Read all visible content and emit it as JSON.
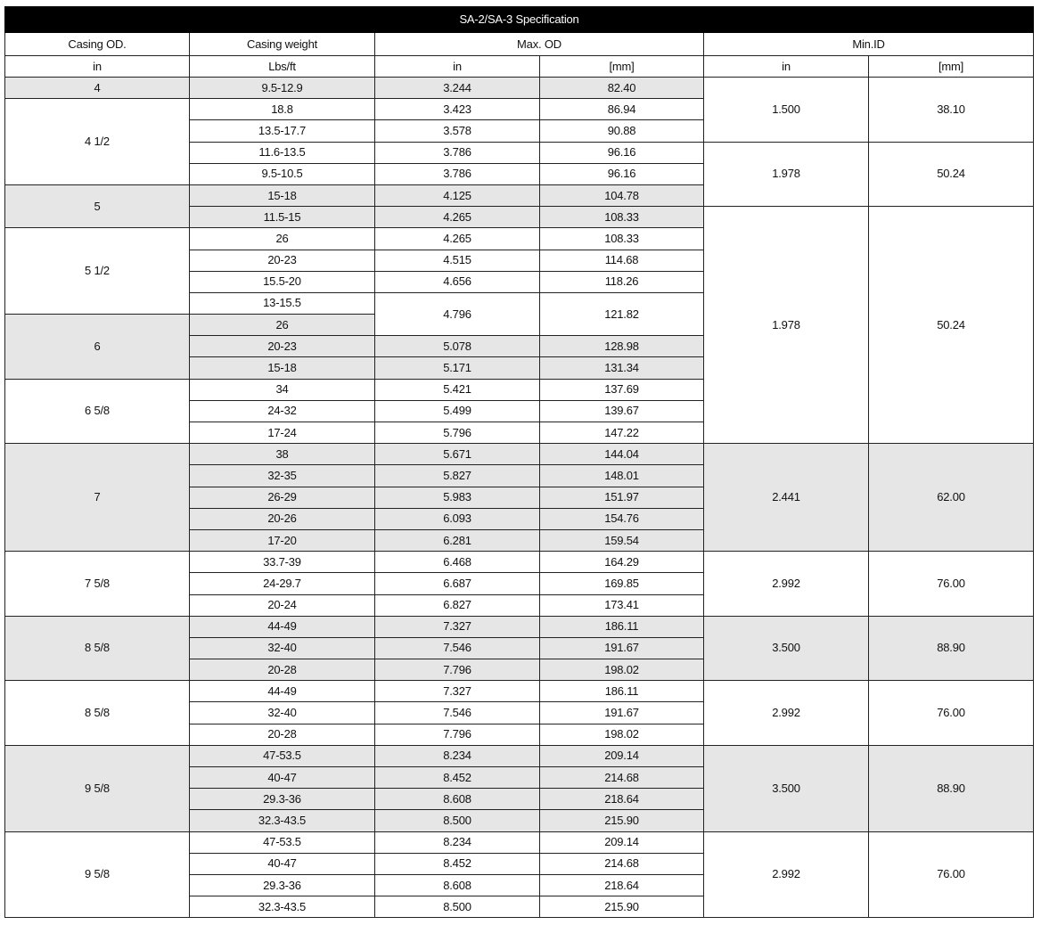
{
  "title": "SA-2/SA-3 Specification",
  "headers": {
    "casing_od": "Casing OD.",
    "casing_weight": "Casing weight",
    "max_od": "Max. OD",
    "min_id": "Min.ID"
  },
  "units": [
    "in",
    "Lbs/ft",
    "in",
    "[mm]",
    "in",
    "[mm]"
  ],
  "shade_color": "#e6e6e6",
  "rows": [
    [
      {
        "t": "4",
        "g": true
      },
      {
        "t": "9.5-12.9",
        "g": true
      },
      {
        "t": "3.244",
        "g": true
      },
      {
        "t": "82.40",
        "g": true
      },
      {
        "t": "1.500",
        "rs": 3
      },
      {
        "t": "38.10",
        "rs": 3
      }
    ],
    [
      {
        "t": "4 1/2",
        "rs": 4
      },
      {
        "t": "18.8"
      },
      {
        "t": "3.423"
      },
      {
        "t": "86.94"
      }
    ],
    [
      {
        "t": "13.5-17.7"
      },
      {
        "t": "3.578"
      },
      {
        "t": "90.88"
      }
    ],
    [
      {
        "t": "11.6-13.5"
      },
      {
        "t": "3.786"
      },
      {
        "t": "96.16"
      },
      {
        "t": "1.978",
        "rs": 3
      },
      {
        "t": "50.24",
        "rs": 3
      }
    ],
    [
      {
        "t": "9.5-10.5"
      },
      {
        "t": "3.786"
      },
      {
        "t": "96.16"
      }
    ],
    [
      {
        "t": "5",
        "rs": 2,
        "g": true
      },
      {
        "t": "15-18",
        "g": true
      },
      {
        "t": "4.125",
        "g": true
      },
      {
        "t": "104.78",
        "g": true
      }
    ],
    [
      {
        "t": "11.5-15",
        "g": true
      },
      {
        "t": "4.265",
        "g": true
      },
      {
        "t": "108.33",
        "g": true
      },
      {
        "t": "1.978",
        "rs": 11
      },
      {
        "t": "50.24",
        "rs": 11
      }
    ],
    [
      {
        "t": "5 1/2",
        "rs": 4
      },
      {
        "t": "26"
      },
      {
        "t": "4.265"
      },
      {
        "t": "108.33"
      }
    ],
    [
      {
        "t": "20-23"
      },
      {
        "t": "4.515"
      },
      {
        "t": "114.68"
      }
    ],
    [
      {
        "t": "15.5-20"
      },
      {
        "t": "4.656"
      },
      {
        "t": "118.26"
      }
    ],
    [
      {
        "t": "13-15.5"
      },
      {
        "t": "4.796",
        "rs": 2
      },
      {
        "t": "121.82",
        "rs": 2
      }
    ],
    [
      {
        "t": "6",
        "rs": 3,
        "g": true
      },
      {
        "t": "26",
        "g": true
      }
    ],
    [
      {
        "t": "20-23",
        "g": true
      },
      {
        "t": "5.078",
        "g": true
      },
      {
        "t": "128.98",
        "g": true
      }
    ],
    [
      {
        "t": "15-18",
        "g": true
      },
      {
        "t": "5.171",
        "g": true
      },
      {
        "t": "131.34",
        "g": true
      }
    ],
    [
      {
        "t": "6 5/8",
        "rs": 3
      },
      {
        "t": "34"
      },
      {
        "t": "5.421"
      },
      {
        "t": "137.69"
      }
    ],
    [
      {
        "t": "24-32"
      },
      {
        "t": "5.499"
      },
      {
        "t": "139.67"
      }
    ],
    [
      {
        "t": "17-24"
      },
      {
        "t": "5.796"
      },
      {
        "t": "147.22"
      }
    ],
    [
      {
        "t": "7",
        "rs": 5,
        "g": true
      },
      {
        "t": "38",
        "g": true
      },
      {
        "t": "5.671",
        "g": true
      },
      {
        "t": "144.04",
        "g": true
      },
      {
        "t": "2.441",
        "rs": 5,
        "g": true
      },
      {
        "t": "62.00",
        "rs": 5,
        "g": true
      }
    ],
    [
      {
        "t": "32-35",
        "g": true
      },
      {
        "t": "5.827",
        "g": true
      },
      {
        "t": "148.01",
        "g": true
      }
    ],
    [
      {
        "t": "26-29",
        "g": true
      },
      {
        "t": "5.983",
        "g": true
      },
      {
        "t": "151.97",
        "g": true
      }
    ],
    [
      {
        "t": "20-26",
        "g": true
      },
      {
        "t": "6.093",
        "g": true
      },
      {
        "t": "154.76",
        "g": true
      }
    ],
    [
      {
        "t": "17-20",
        "g": true
      },
      {
        "t": "6.281",
        "g": true
      },
      {
        "t": "159.54",
        "g": true
      }
    ],
    [
      {
        "t": "7 5/8",
        "rs": 3
      },
      {
        "t": "33.7-39"
      },
      {
        "t": "6.468"
      },
      {
        "t": "164.29"
      },
      {
        "t": "2.992",
        "rs": 3
      },
      {
        "t": "76.00",
        "rs": 3
      }
    ],
    [
      {
        "t": "24-29.7"
      },
      {
        "t": "6.687"
      },
      {
        "t": "169.85"
      }
    ],
    [
      {
        "t": "20-24"
      },
      {
        "t": "6.827"
      },
      {
        "t": "173.41"
      }
    ],
    [
      {
        "t": "8 5/8",
        "rs": 3,
        "g": true
      },
      {
        "t": "44-49",
        "g": true
      },
      {
        "t": "7.327",
        "g": true
      },
      {
        "t": "186.11",
        "g": true
      },
      {
        "t": "3.500",
        "rs": 3,
        "g": true
      },
      {
        "t": "88.90",
        "rs": 3,
        "g": true
      }
    ],
    [
      {
        "t": "32-40",
        "g": true
      },
      {
        "t": "7.546",
        "g": true
      },
      {
        "t": "191.67",
        "g": true
      }
    ],
    [
      {
        "t": "20-28",
        "g": true
      },
      {
        "t": "7.796",
        "g": true
      },
      {
        "t": "198.02",
        "g": true
      }
    ],
    [
      {
        "t": "8 5/8",
        "rs": 3
      },
      {
        "t": "44-49"
      },
      {
        "t": "7.327"
      },
      {
        "t": "186.11"
      },
      {
        "t": "2.992",
        "rs": 3
      },
      {
        "t": "76.00",
        "rs": 3
      }
    ],
    [
      {
        "t": "32-40"
      },
      {
        "t": "7.546"
      },
      {
        "t": "191.67"
      }
    ],
    [
      {
        "t": "20-28"
      },
      {
        "t": "7.796"
      },
      {
        "t": "198.02"
      }
    ],
    [
      {
        "t": "9 5/8",
        "rs": 4,
        "g": true
      },
      {
        "t": "47-53.5",
        "g": true
      },
      {
        "t": "8.234",
        "g": true
      },
      {
        "t": "209.14",
        "g": true
      },
      {
        "t": "3.500",
        "rs": 4,
        "g": true
      },
      {
        "t": "88.90",
        "rs": 4,
        "g": true
      }
    ],
    [
      {
        "t": "40-47",
        "g": true
      },
      {
        "t": "8.452",
        "g": true
      },
      {
        "t": "214.68",
        "g": true
      }
    ],
    [
      {
        "t": "29.3-36",
        "g": true
      },
      {
        "t": "8.608",
        "g": true
      },
      {
        "t": "218.64",
        "g": true
      }
    ],
    [
      {
        "t": "32.3-43.5",
        "g": true
      },
      {
        "t": "8.500",
        "g": true
      },
      {
        "t": "215.90",
        "g": true
      }
    ],
    [
      {
        "t": "9 5/8",
        "rs": 4
      },
      {
        "t": "47-53.5"
      },
      {
        "t": "8.234"
      },
      {
        "t": "209.14"
      },
      {
        "t": "2.992",
        "rs": 4
      },
      {
        "t": "76.00",
        "rs": 4
      }
    ],
    [
      {
        "t": "40-47"
      },
      {
        "t": "8.452"
      },
      {
        "t": "214.68"
      }
    ],
    [
      {
        "t": "29.3-36"
      },
      {
        "t": "8.608"
      },
      {
        "t": "218.64"
      }
    ],
    [
      {
        "t": "32.3-43.5"
      },
      {
        "t": "8.500"
      },
      {
        "t": "215.90"
      }
    ]
  ]
}
